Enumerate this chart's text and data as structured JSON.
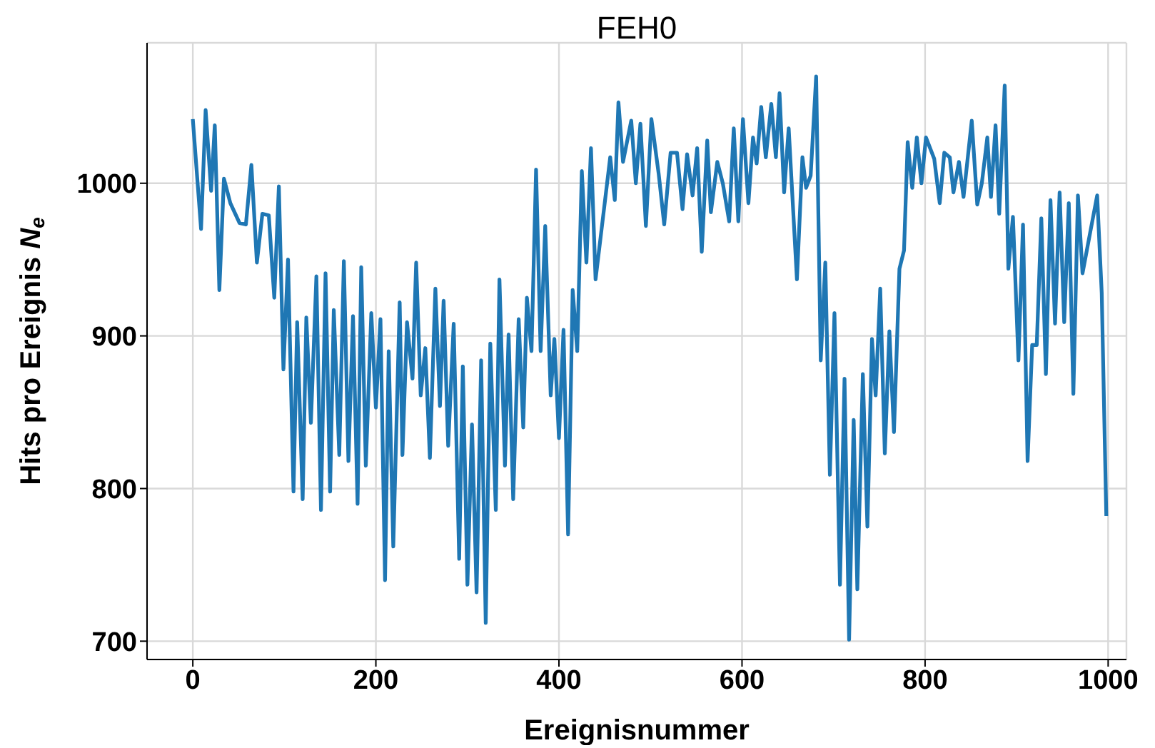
{
  "chart_data": {
    "type": "line",
    "title": "FEH0",
    "xlabel": "Ereignisnummer",
    "ylabel": "Hits pro Ereignis N$_{e}$",
    "x": [
      0,
      9,
      14,
      20,
      24,
      29,
      34,
      41,
      51,
      58,
      64,
      70,
      76,
      83,
      89,
      94,
      99,
      104,
      110,
      114,
      120,
      124,
      129,
      135,
      140,
      145,
      150,
      154,
      160,
      165,
      170,
      175,
      180,
      184,
      189,
      195,
      200,
      205,
      210,
      214,
      219,
      226,
      229,
      234,
      240,
      244,
      249,
      254,
      259,
      265,
      270,
      274,
      279,
      285,
      291,
      295,
      300,
      305,
      310,
      315,
      320,
      325,
      331,
      335,
      341,
      345,
      350,
      356,
      361,
      365,
      370,
      375,
      380,
      385,
      391,
      395,
      400,
      405,
      410,
      415,
      420,
      425,
      430,
      435,
      440,
      456,
      461,
      465,
      470,
      479,
      484,
      489,
      495,
      501,
      509,
      515,
      522,
      529,
      535,
      540,
      546,
      551,
      556,
      562,
      566,
      573,
      579,
      586,
      591,
      596,
      601,
      607,
      612,
      616,
      621,
      626,
      632,
      637,
      641,
      646,
      651,
      660,
      666,
      670,
      675,
      681,
      686,
      691,
      696,
      701,
      707,
      712,
      717,
      722,
      726,
      732,
      737,
      742,
      746,
      751,
      756,
      761,
      766,
      772,
      777,
      781,
      786,
      791,
      796,
      801,
      810,
      816,
      821,
      827,
      831,
      837,
      842,
      851,
      857,
      862,
      868,
      872,
      877,
      881,
      887,
      891,
      896,
      902,
      907,
      912,
      917,
      922,
      927,
      932,
      937,
      942,
      947,
      952,
      957,
      962,
      967,
      972,
      988,
      993,
      998
    ],
    "series": [
      {
        "color": "#1f77b4",
        "values": [
          1042,
          970,
          1048,
          995,
          1038,
          930,
          1003,
          987,
          974,
          973,
          1012,
          948,
          980,
          979,
          925,
          998,
          878,
          950,
          798,
          909,
          793,
          912,
          843,
          939,
          786,
          941,
          798,
          917,
          822,
          949,
          818,
          913,
          790,
          945,
          815,
          915,
          853,
          911,
          740,
          890,
          762,
          922,
          822,
          909,
          872,
          948,
          861,
          892,
          820,
          931,
          854,
          923,
          828,
          908,
          754,
          880,
          737,
          842,
          732,
          884,
          712,
          895,
          786,
          937,
          815,
          901,
          793,
          911,
          840,
          925,
          890,
          1009,
          890,
          972,
          861,
          898,
          833,
          904,
          770,
          930,
          890,
          1008,
          948,
          1023,
          937,
          1017,
          989,
          1053,
          1014,
          1041,
          1000,
          1039,
          972,
          1042,
          1006,
          973,
          1020,
          1020,
          983,
          1019,
          992,
          1023,
          955,
          1028,
          981,
          1014,
          1000,
          975,
          1036,
          975,
          1042,
          987,
          1030,
          1013,
          1050,
          1017,
          1052,
          1017,
          1059,
          994,
          1036,
          937,
          1017,
          997,
          1005,
          1070,
          884,
          948,
          809,
          915,
          737,
          872,
          701,
          845,
          734,
          875,
          775,
          898,
          861,
          931,
          823,
          903,
          837,
          944,
          956,
          1027,
          997,
          1030,
          1000,
          1030,
          1016,
          987,
          1020,
          1017,
          994,
          1014,
          991,
          1041,
          986,
          1000,
          1030,
          991,
          1038,
          980,
          1064,
          944,
          978,
          884,
          973,
          818,
          894,
          894,
          977,
          875,
          989,
          908,
          994,
          909,
          987,
          862,
          992,
          941,
          992,
          928,
          782
        ]
      }
    ],
    "xlim": [
      -50,
      1020
    ],
    "ylim": [
      688,
      1092
    ],
    "xticks": [
      0,
      200,
      400,
      600,
      800,
      1000
    ],
    "yticks": [
      700,
      800,
      900,
      1000
    ],
    "grid": true
  }
}
